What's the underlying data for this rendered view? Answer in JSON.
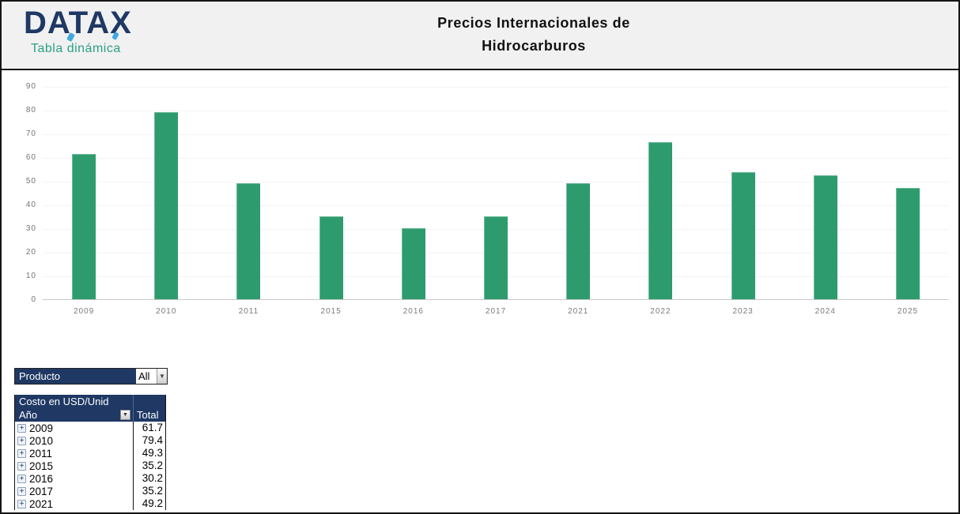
{
  "header": {
    "logo_text": "DATAX",
    "logo_subtitle": "Tabla dinámica",
    "title_line1": "Precios Internacionales de",
    "title_line2": "Hidrocarburos"
  },
  "chart_data": {
    "type": "bar",
    "title": "",
    "xlabel": "",
    "ylabel": "",
    "categories": [
      "2009",
      "2010",
      "2011",
      "2015",
      "2016",
      "2017",
      "2021",
      "2022",
      "2023",
      "2024",
      "2025"
    ],
    "values": [
      61.7,
      79.4,
      49.3,
      35.2,
      30.2,
      35.2,
      49.2,
      66.6,
      53.9,
      52.5,
      47.2
    ],
    "ylim": [
      0,
      90
    ],
    "yticks": [
      "90",
      "80",
      "70",
      "60",
      "50",
      "40",
      "30",
      "20",
      "10",
      "0"
    ],
    "grid": true,
    "legend": false,
    "bar_color": "#2E9B6E"
  },
  "filter": {
    "label": "Producto",
    "value": "All",
    "dropdown_icon": "▼"
  },
  "pivot": {
    "header_title": "Costo en USD/Unid",
    "row_header": "Año",
    "total_header": "Total",
    "filter_icon": "▼",
    "expand_icon": "+",
    "rows": [
      {
        "year": "2009",
        "total": "61.7"
      },
      {
        "year": "2010",
        "total": "79.4"
      },
      {
        "year": "2011",
        "total": "49.3"
      },
      {
        "year": "2015",
        "total": "35.2"
      },
      {
        "year": "2016",
        "total": "30.2"
      },
      {
        "year": "2017",
        "total": "35.2"
      },
      {
        "year": "2021",
        "total": "49.2"
      }
    ]
  },
  "colors": {
    "navy": "#1F3864",
    "teal": "#2BA084",
    "bar_green": "#2E9B6E",
    "accent_blue": "#41A9E0"
  }
}
